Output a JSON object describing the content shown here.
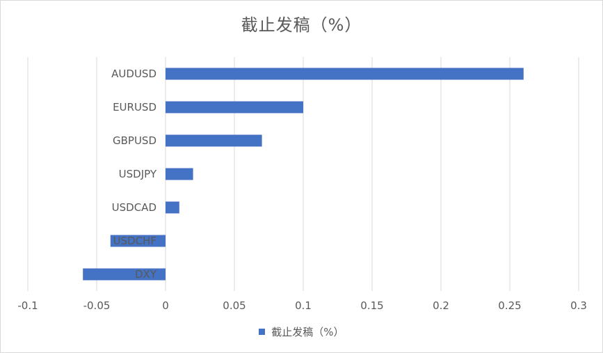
{
  "chart_data": {
    "type": "bar",
    "orientation": "horizontal",
    "title": "截止发稿（%）",
    "categories": [
      "AUDUSD",
      "EURUSD",
      "GBPUSD",
      "USDJPY",
      "USDCAD",
      "USDCHF",
      "DXY"
    ],
    "series": [
      {
        "name": "截止发稿（%）",
        "values": [
          0.26,
          0.1,
          0.07,
          0.02,
          0.01,
          -0.04,
          -0.06
        ]
      }
    ],
    "xlim": [
      -0.1,
      0.3
    ],
    "xticks": [
      -0.1,
      -0.05,
      0,
      0.05,
      0.1,
      0.15,
      0.2,
      0.25,
      0.3
    ],
    "xtick_labels": [
      "-0.1",
      "-0.05",
      "0",
      "0.05",
      "0.1",
      "0.15",
      "0.2",
      "0.25",
      "0.3"
    ],
    "grid": "vertical",
    "legend_position": "bottom",
    "bar_color": "#4472C4",
    "grid_color": "#d9d9d9"
  }
}
